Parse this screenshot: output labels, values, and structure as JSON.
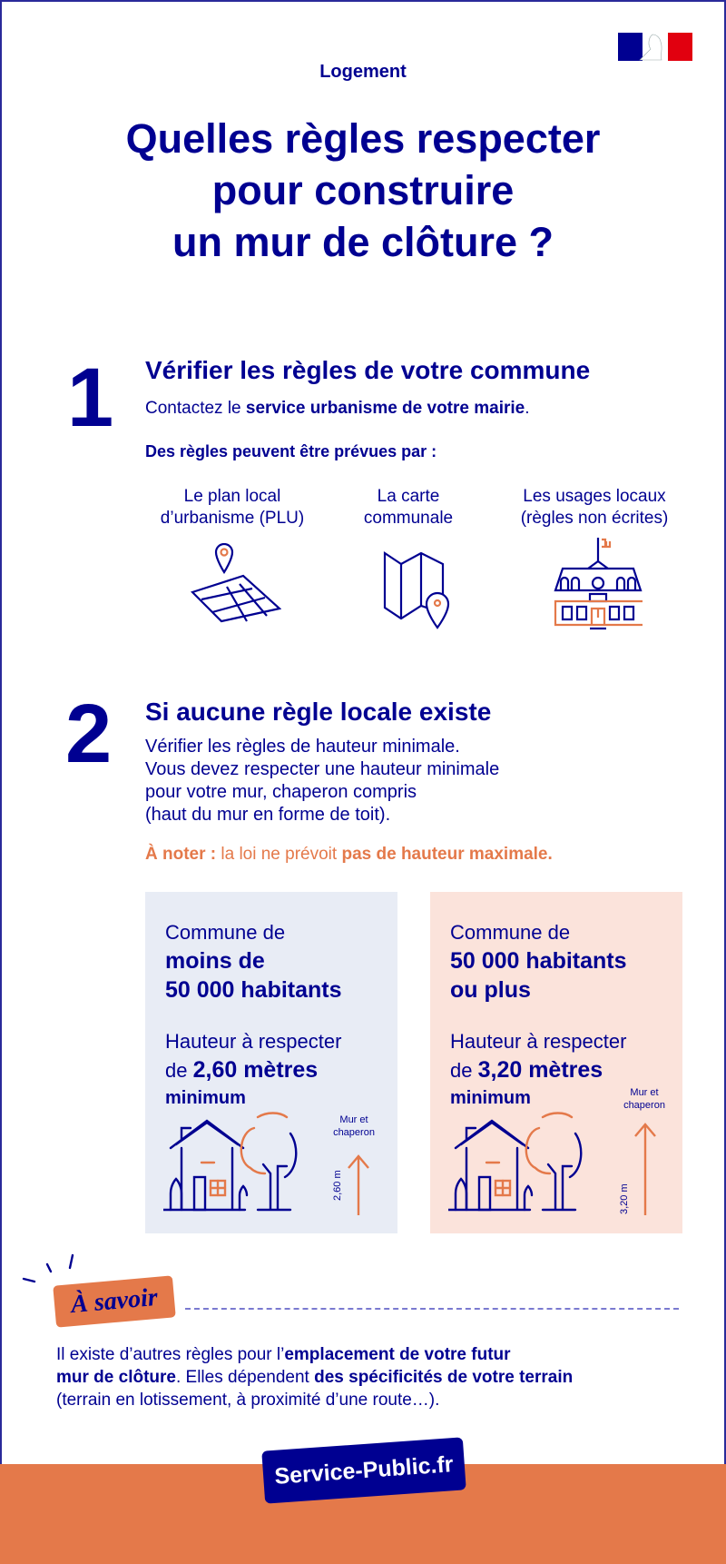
{
  "colors": {
    "navy": "#000091",
    "orange": "#e4794a",
    "box_blue": "#e8ecf5",
    "box_pink": "#fbe3db"
  },
  "logo": {
    "name": "Marianne République Française logo"
  },
  "category": "Logement",
  "title": [
    "Quelles règles respecter",
    "pour construire",
    "un mur de clôture ?"
  ],
  "step1": {
    "number": "1",
    "heading": "Vérifier les règles de votre commune",
    "contact_prefix": "Contactez le ",
    "contact_bold": "service urbanisme de votre mairie",
    "contact_suffix": ".",
    "rules_intro": "Des règles peuvent être prévues par :",
    "items": [
      {
        "line1": "Le plan local",
        "line2": "d’urbanisme (PLU)",
        "icon": "map-pin-icon"
      },
      {
        "line1": "La carte",
        "line2": "communale",
        "icon": "folded-map-icon"
      },
      {
        "line1": "Les usages locaux",
        "line2": "(règles non écrites)",
        "icon": "town-hall-icon"
      }
    ]
  },
  "step2": {
    "number": "2",
    "heading": "Si aucune règle locale existe",
    "lines": [
      "Vérifier les règles de hauteur minimale.",
      "Vous devez respecter une hauteur minimale",
      "pour votre mur, chaperon compris",
      "(haut du mur en forme de toit)."
    ],
    "note_label": "À noter :",
    "note_text": " la loi ne prévoit ",
    "note_bold": "pas de hauteur maximale."
  },
  "boxes": [
    {
      "line1": "Commune de",
      "bold1": "moins de",
      "bold2": "50 000 habitants",
      "h1": "Hauteur à respecter",
      "h2_prefix": "de ",
      "h2_bold": "2,60 mètres",
      "min": "minimum",
      "arrow_label": "2,60 m",
      "wall_label1": "Mur et",
      "wall_label2": "chaperon"
    },
    {
      "line1": "Commune de",
      "bold1": "50 000 habitants",
      "bold2": "ou plus",
      "h1": "Hauteur à respecter",
      "h2_prefix": "de ",
      "h2_bold": "3,20 mètres",
      "min": "minimum",
      "arrow_label": "3,20 m",
      "wall_label1": "Mur et",
      "wall_label2": "chaperon"
    }
  ],
  "savoir": {
    "label": "À savoir",
    "t1": "Il existe d’autres règles pour l’",
    "b1": "emplacement de votre futur",
    "b2": "mur de clôture",
    "t2": ". Elles dépendent ",
    "b3": "des spécificités de votre terrain",
    "t3": "(terrain en lotissement, à proximité d’une route…)."
  },
  "footer": {
    "brand": "Service-Public.fr"
  }
}
